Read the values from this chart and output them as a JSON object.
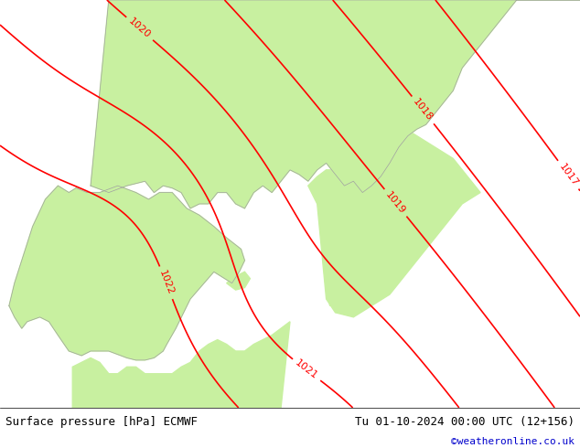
{
  "title_left": "Surface pressure [hPa] ECMWF",
  "title_right": "Tu 01-10-2024 00:00 UTC (12+156)",
  "credit": "©weatheronline.co.uk",
  "bg_color": "#e8e8e8",
  "land_color": "#c8f0a0",
  "sea_color": "#d8d8d8",
  "contour_color": "#ff0000",
  "label_color": "#ff0000",
  "contour_linewidth": 1.2,
  "figsize": [
    6.34,
    4.9
  ],
  "dpi": 100,
  "bottom_bar_color": "#f0f0f0",
  "font_family": "monospace"
}
